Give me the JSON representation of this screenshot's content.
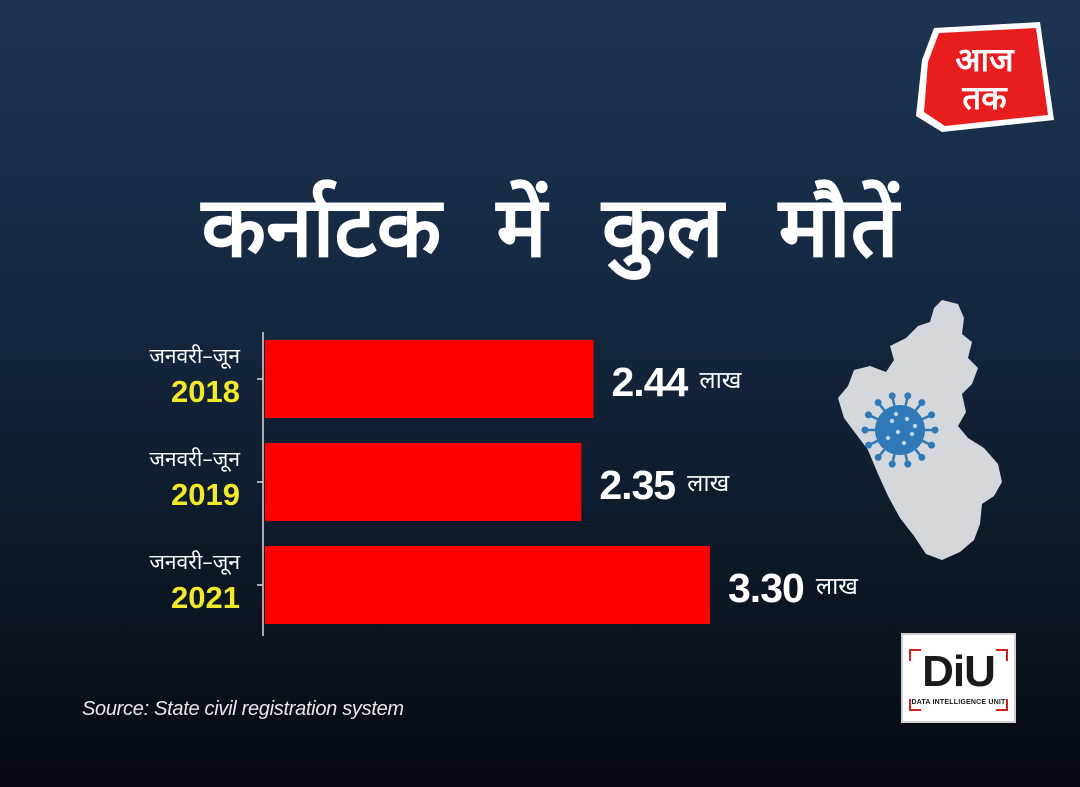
{
  "logo": {
    "line1": "आज",
    "line2": "तक"
  },
  "chart_data": {
    "type": "bar",
    "orientation": "horizontal",
    "title": "कर्नाटक में कुल मौतें",
    "categories": [
      {
        "name": "जनवरी–जून",
        "year": "2018"
      },
      {
        "name": "जनवरी–जून",
        "year": "2019"
      },
      {
        "name": "जनवरी–जून",
        "year": "2021"
      }
    ],
    "values": [
      2.44,
      2.35,
      3.3
    ],
    "value_labels": [
      "2.44",
      "2.35",
      "3.30"
    ],
    "unit": "लाख",
    "xlim": [
      0,
      3.5
    ],
    "bar_color": "#ff0000",
    "axis_color": "#d9d9d9"
  },
  "map_color": "#d4d7dc",
  "virus_color": "#2f79b8",
  "badge": {
    "letters": "DiU",
    "subtitle": "DATA INTELLIGENCE UNIT"
  },
  "source": "Source: State civil registration system"
}
